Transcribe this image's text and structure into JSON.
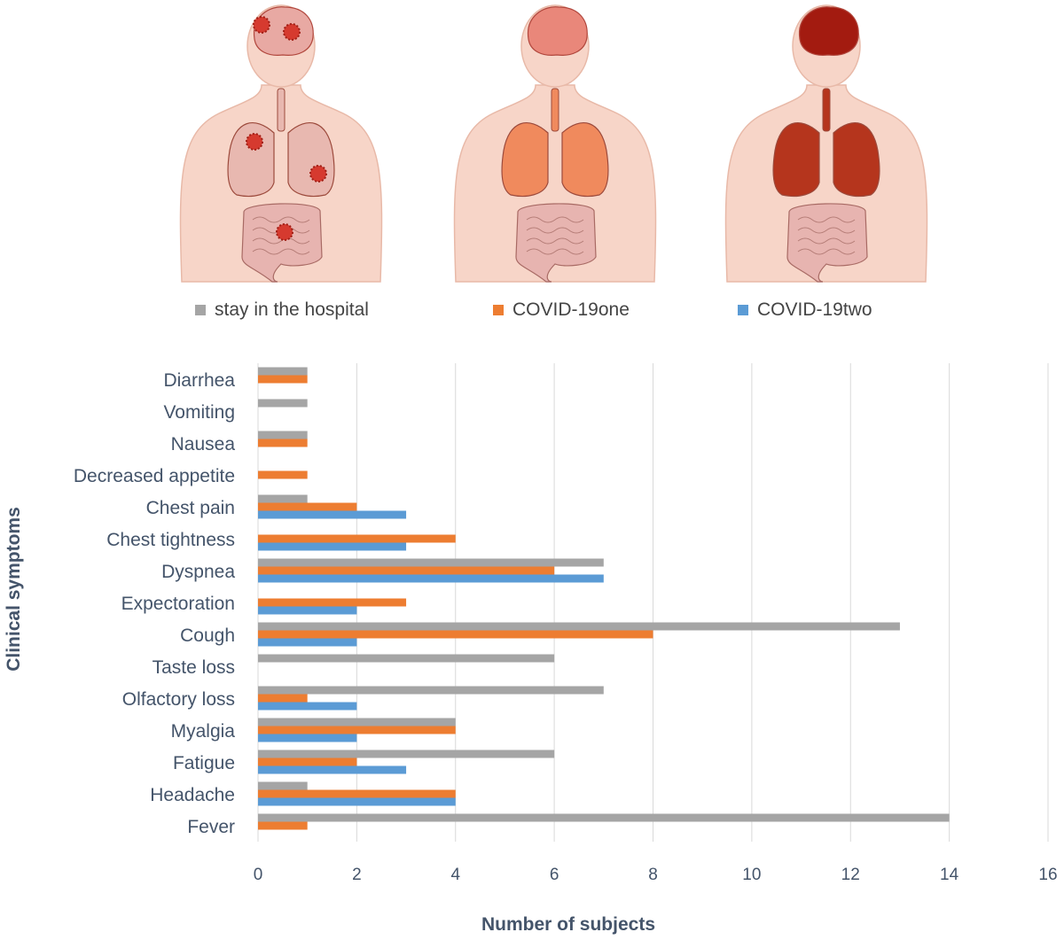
{
  "chart_data": {
    "type": "bar",
    "orientation": "horizontal",
    "xlabel": "Number of subjects",
    "ylabel": "Clinical symptoms",
    "xlim": [
      0,
      16
    ],
    "xticks": [
      "0",
      "2",
      "4",
      "6",
      "8",
      "10",
      "12",
      "14",
      "16"
    ],
    "grid": "vertical",
    "legend_position": "top",
    "categories": [
      "Diarrhea",
      "Vomiting",
      "Nausea",
      "Decreased appetite",
      "Chest pain",
      "Chest tightness",
      "Dyspnea",
      "Expectoration",
      "Cough",
      "Taste loss",
      "Olfactory loss",
      "Myalgia",
      "Fatigue",
      "Headache",
      "Fever"
    ],
    "series": [
      {
        "name": "stay in the hospital",
        "color": "#a5a5a5",
        "values": [
          1,
          1,
          1,
          0,
          1,
          0,
          7,
          0,
          13,
          6,
          7,
          4,
          6,
          1,
          14
        ]
      },
      {
        "name": "COVID-19one",
        "color": "#ed7d31",
        "values": [
          1,
          0,
          1,
          1,
          2,
          4,
          6,
          3,
          8,
          0,
          1,
          4,
          2,
          4,
          1
        ]
      },
      {
        "name": "COVID-19two",
        "color": "#5b9bd5",
        "values": [
          0,
          0,
          0,
          0,
          3,
          3,
          7,
          2,
          2,
          0,
          2,
          2,
          3,
          4,
          0
        ]
      }
    ]
  },
  "figures": {
    "panels": [
      "stay in the hospital",
      "COVID-19one",
      "COVID-19two"
    ],
    "icons": [
      "body-illustration-infected",
      "body-illustration-orange-organs",
      "body-illustration-dark-organs"
    ],
    "organ_colors": [
      "#e8b8b0",
      "#f08a5d",
      "#b5351d"
    ]
  }
}
